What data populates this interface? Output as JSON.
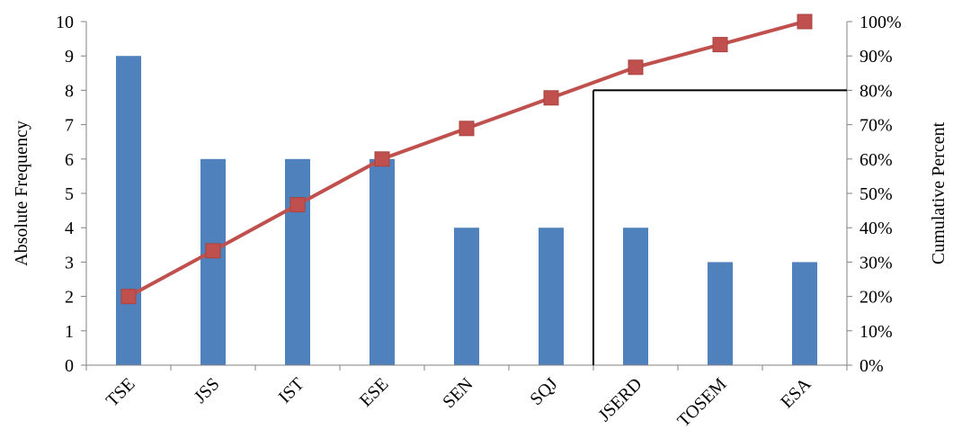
{
  "chart_data": {
    "type": "bar",
    "combo": "bar + line (pareto)",
    "categories": [
      "TSE",
      "JSS",
      "IST",
      "ESE",
      "SEN",
      "SQJ",
      "JSERD",
      "TOSEM",
      "ESA"
    ],
    "series": [
      {
        "name": "",
        "type": "bar",
        "axis": "left",
        "values": [
          9,
          6,
          6,
          6,
          4,
          4,
          4,
          3,
          3
        ]
      },
      {
        "name": "",
        "type": "line",
        "axis": "right",
        "values": [
          20,
          33.3,
          46.7,
          60,
          68.9,
          77.8,
          86.7,
          93.3,
          100
        ]
      }
    ],
    "xlabel": "",
    "ylabel": "Absolute Frequency",
    "y2label": "Cumulative Percent",
    "ylim": [
      0,
      10
    ],
    "y2lim": [
      0,
      100
    ],
    "y_ticks": [
      "0",
      "1",
      "2",
      "3",
      "4",
      "5",
      "6",
      "7",
      "8",
      "9",
      "10"
    ],
    "y2_ticks": [
      "0%",
      "10%",
      "20%",
      "30%",
      "40%",
      "50%",
      "60%",
      "70%",
      "80%",
      "90%",
      "100%"
    ],
    "reference_line": {
      "y2_value": 80,
      "x_between": [
        "SQJ",
        "JSERD"
      ]
    },
    "grid": false,
    "legend": "none"
  },
  "colors": {
    "bar": "#4F81BD",
    "line": "#C0504D",
    "marker": "#C0504D",
    "axis": "#808080",
    "reference": "#000000"
  }
}
